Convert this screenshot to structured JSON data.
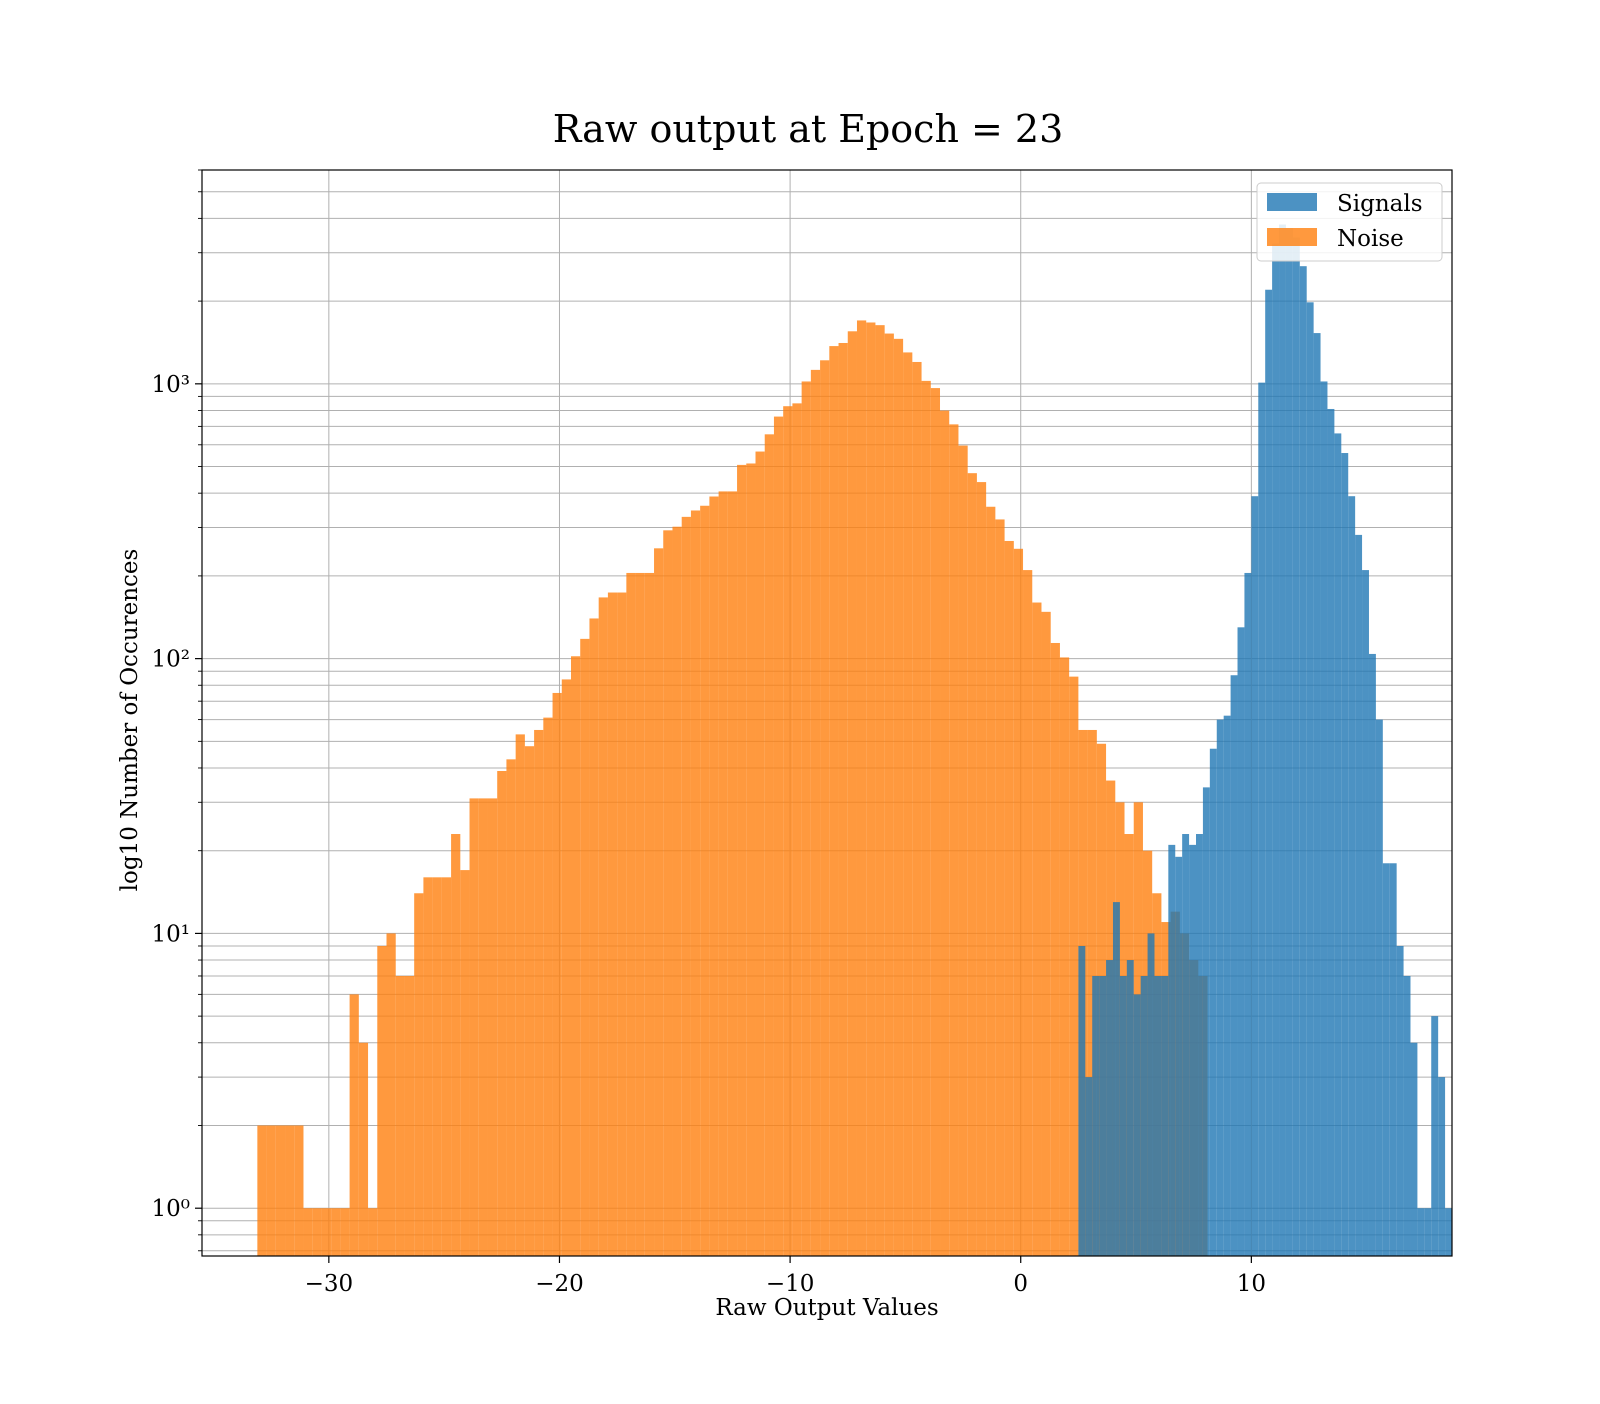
{
  "chart_data": {
    "type": "histogram",
    "title": "Raw output at Epoch = 23",
    "xlabel": "Raw Output Values",
    "ylabel": "log10 Number of Occurences",
    "xlim": [
      -35.5,
      18.7
    ],
    "ylim": [
      0.67,
      6000
    ],
    "yscale": "log",
    "grid": true,
    "legend_position": "top-right",
    "x_ticks": [
      -30,
      -20,
      -10,
      0,
      10
    ],
    "x_tick_labels": [
      "−30",
      "−20",
      "−10",
      "0",
      "10"
    ],
    "y_ticks": [
      1,
      10,
      100,
      1000
    ],
    "y_tick_labels": [
      "10⁰",
      "10¹",
      "10²",
      "10³"
    ],
    "series": [
      {
        "name": "Noise",
        "color": "#ff7f0e",
        "bin_start": -33.1,
        "bin_width": 0.4,
        "counts": [
          2,
          2,
          2,
          2,
          2,
          1,
          1,
          1,
          1,
          1,
          6,
          4,
          1,
          9,
          10,
          7,
          7,
          14,
          16,
          16,
          16,
          23,
          17,
          31,
          31,
          31,
          39,
          43,
          53,
          48,
          55,
          61,
          75,
          84,
          102,
          118,
          140,
          167,
          174,
          174,
          205,
          205,
          205,
          252,
          293,
          302,
          328,
          346,
          360,
          389,
          406,
          406,
          507,
          513,
          567,
          655,
          760,
          829,
          849,
          1020,
          1124,
          1218,
          1372,
          1408,
          1553,
          1701,
          1672,
          1635,
          1524,
          1458,
          1301,
          1201,
          1025,
          965,
          799,
          712,
          596,
          473,
          439,
          357,
          321,
          268,
          251,
          210,
          160,
          148,
          114,
          101,
          86,
          55,
          55,
          49,
          36,
          30,
          23,
          30,
          20,
          14,
          11,
          12,
          10,
          8,
          7
        ]
      },
      {
        "name": "Signals",
        "color": "#1f77b4",
        "bin_start": 2.5,
        "bin_width": 0.3,
        "counts": [
          9,
          3,
          7,
          7,
          8,
          13,
          7,
          8,
          6,
          7,
          10,
          7,
          7,
          21,
          19,
          23,
          21,
          23,
          34,
          47,
          60,
          62,
          87,
          130,
          205,
          390,
          1010,
          2200,
          3240,
          3800,
          3690,
          3410,
          2680,
          1980,
          1530,
          1020,
          810,
          660,
          560,
          390,
          282,
          210,
          104,
          60,
          18,
          18,
          9,
          7,
          4,
          1,
          1,
          5,
          3,
          1
        ]
      }
    ]
  }
}
